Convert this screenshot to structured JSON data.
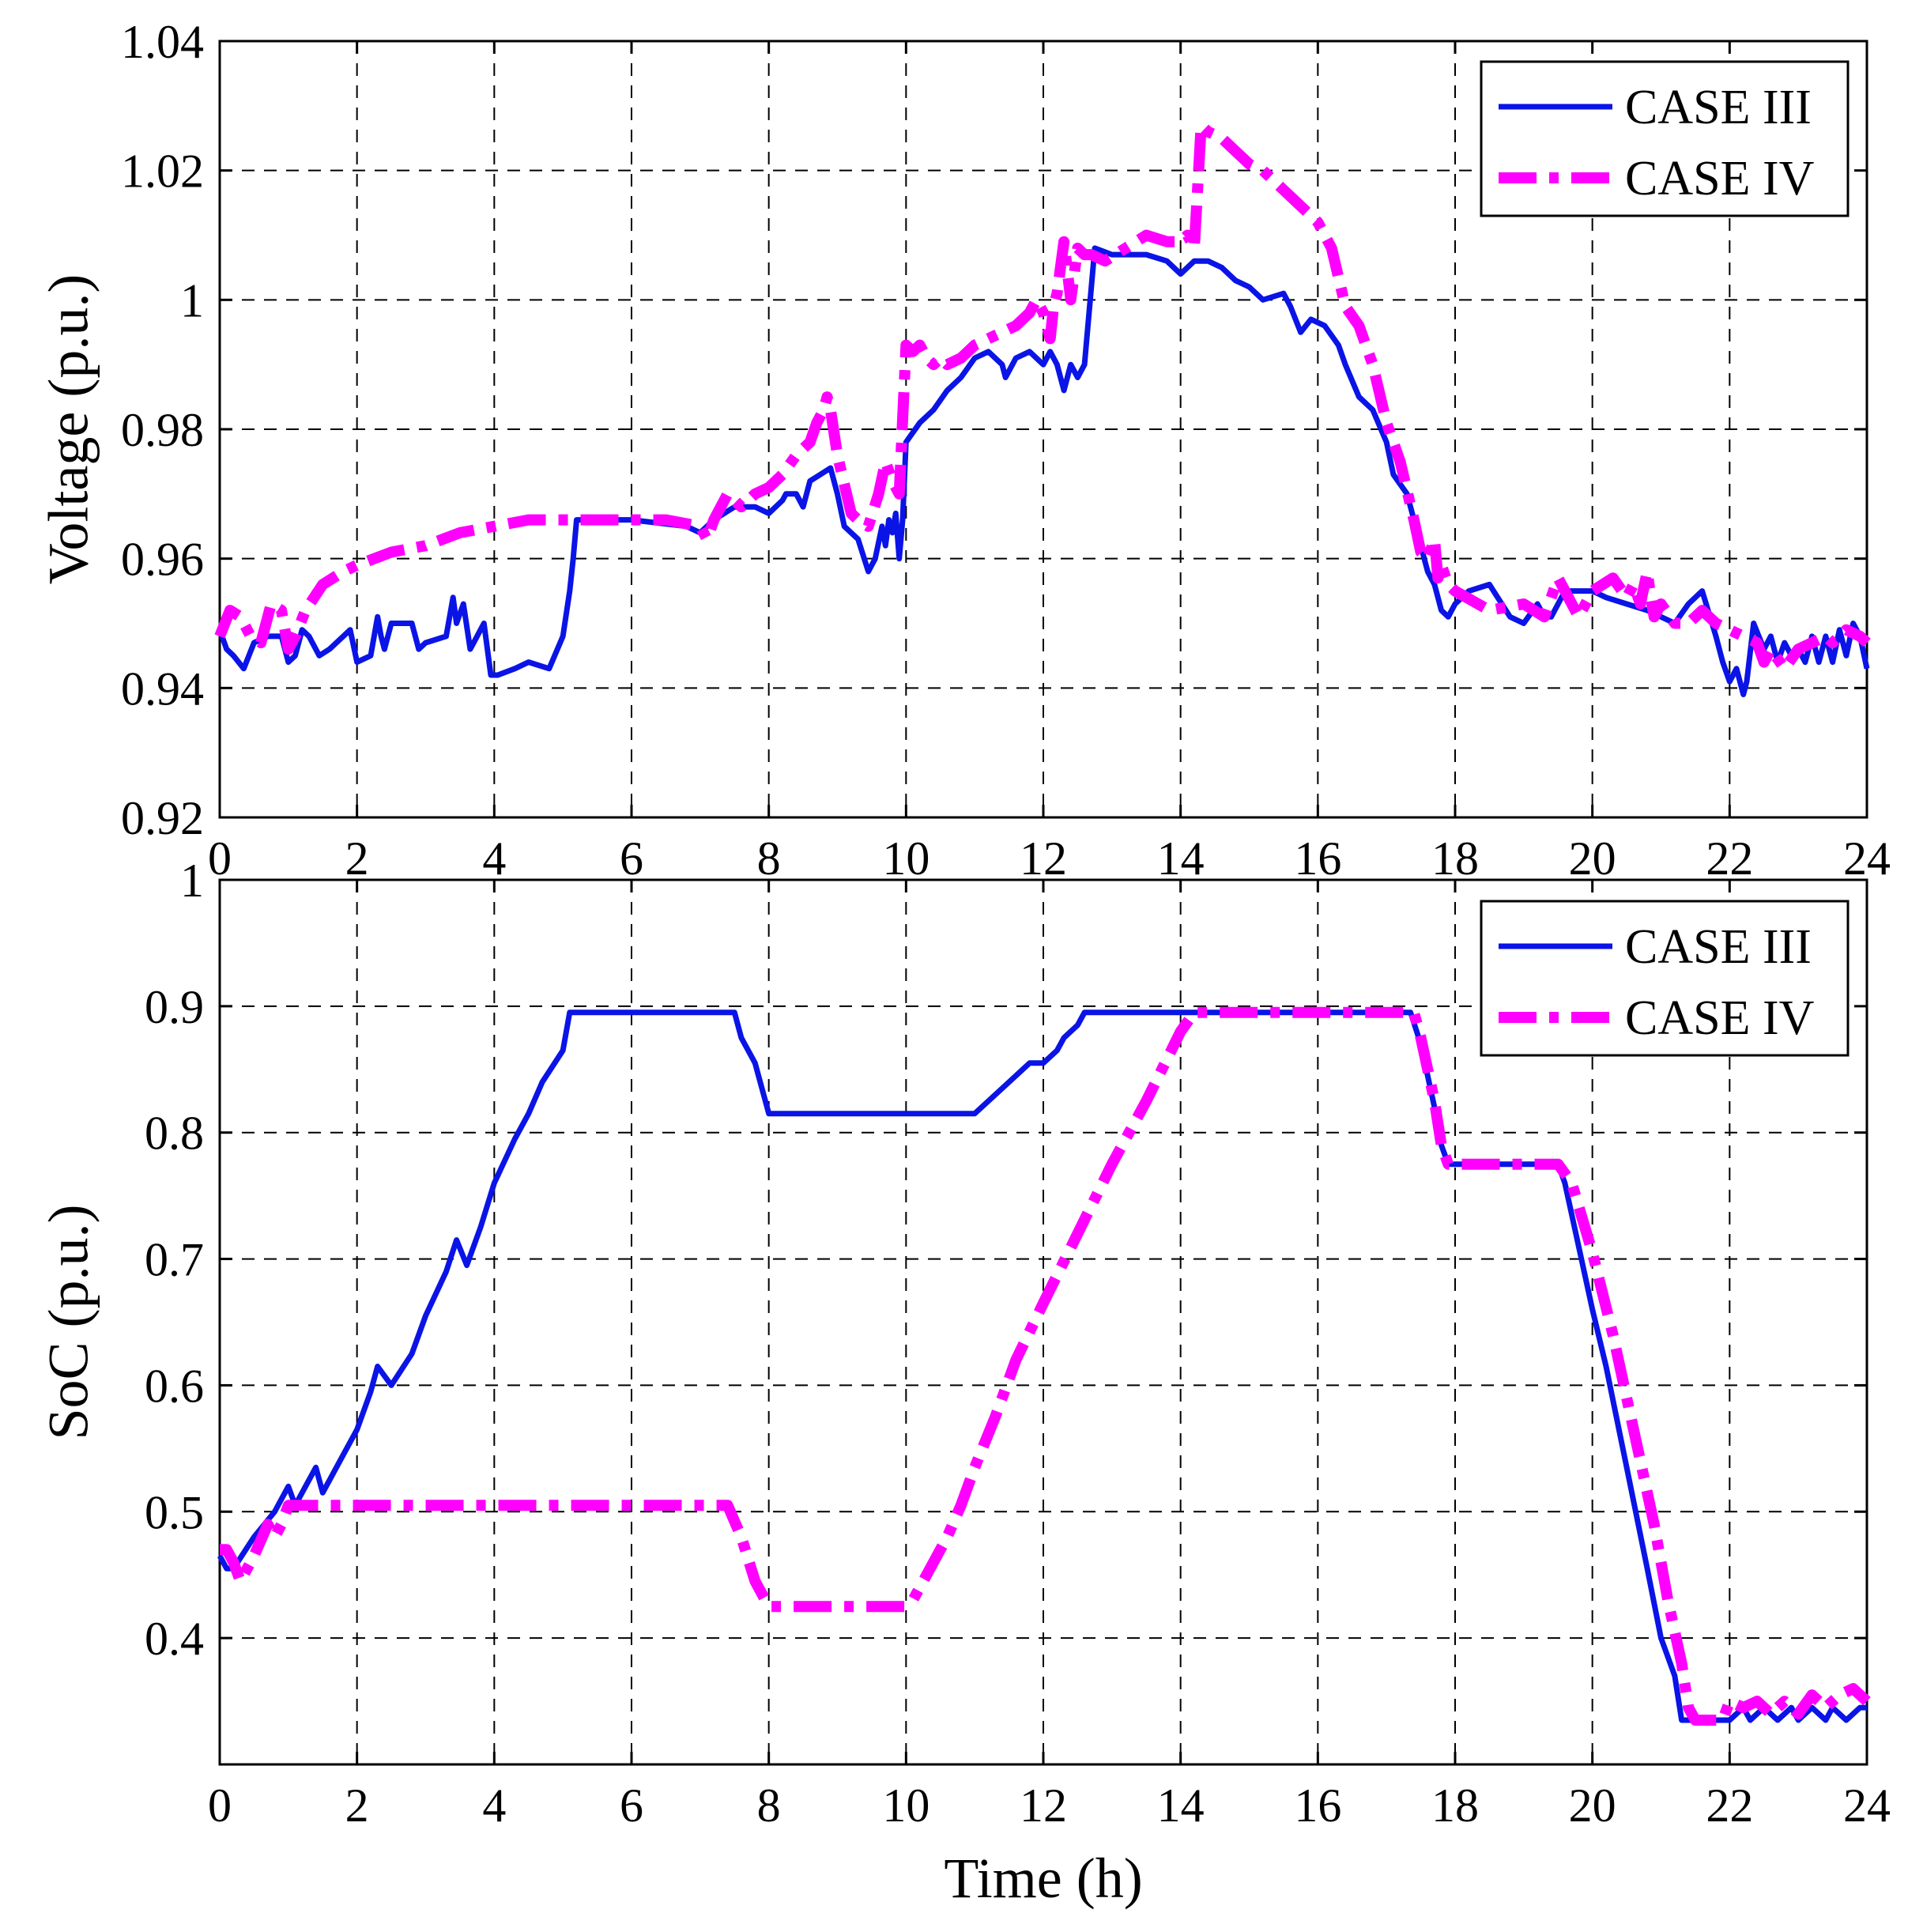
{
  "chart_data": [
    {
      "type": "line",
      "ylabel": "Voltage (p.u.)",
      "xlabel": "",
      "xlim": [
        0,
        24
      ],
      "ylim": [
        0.92,
        1.04
      ],
      "xticks": [
        "0",
        "2",
        "4",
        "6",
        "8",
        "10",
        "12",
        "14",
        "16",
        "18",
        "20",
        "22",
        "24"
      ],
      "yticks": [
        "0.92",
        "0.94",
        "0.96",
        "0.98",
        "1",
        "1.02",
        "1.04"
      ],
      "grid": true,
      "legend_position": "top-right",
      "colors": {
        "CASE III": "#0a14e6",
        "CASE IV": "#ff00ff"
      },
      "series": [
        {
          "name": "CASE III",
          "style": "solid",
          "x": [
            0,
            0.1,
            0.2,
            0.35,
            0.5,
            0.7,
            0.9,
            1.0,
            1.1,
            1.2,
            1.3,
            1.45,
            1.6,
            1.8,
            1.9,
            2.0,
            2.2,
            2.3,
            2.35,
            2.4,
            2.5,
            2.8,
            2.9,
            3.0,
            3.3,
            3.4,
            3.45,
            3.55,
            3.65,
            3.7,
            3.85,
            3.95,
            4.05,
            4.3,
            4.5,
            4.8,
            5.0,
            5.1,
            5.15,
            5.2,
            6.0,
            6.8,
            7.0,
            7.2,
            7.5,
            7.8,
            8.0,
            8.2,
            8.25,
            8.4,
            8.5,
            8.6,
            8.75,
            8.9,
            9.0,
            9.1,
            9.3,
            9.45,
            9.55,
            9.65,
            9.7,
            9.75,
            9.8,
            9.85,
            9.9,
            9.95,
            10.0,
            10.2,
            10.4,
            10.6,
            10.8,
            11.0,
            11.2,
            11.4,
            11.45,
            11.6,
            11.8,
            12.0,
            12.1,
            12.2,
            12.3,
            12.4,
            12.5,
            12.6,
            12.75,
            13.0,
            13.2,
            13.5,
            13.8,
            14.0,
            14.2,
            14.4,
            14.6,
            14.8,
            15.0,
            15.2,
            15.5,
            15.6,
            15.75,
            15.9,
            16.1,
            16.3,
            16.4,
            16.6,
            16.8,
            17.0,
            17.1,
            17.3,
            17.5,
            17.6,
            17.7,
            17.8,
            17.9,
            18.0,
            18.2,
            18.5,
            18.8,
            19.0,
            19.2,
            19.3,
            19.4,
            19.5,
            19.6,
            19.8,
            20.0,
            20.2,
            20.5,
            20.8,
            21.0,
            21.2,
            21.4,
            21.6,
            21.8,
            21.9,
            22.0,
            22.1,
            22.2,
            22.25,
            22.35,
            22.5,
            22.6,
            22.7,
            22.8,
            22.9,
            23.0,
            23.1,
            23.2,
            23.3,
            23.4,
            23.5,
            23.6,
            23.7,
            23.8,
            23.9,
            24.0
          ],
          "values": [
            0.949,
            0.946,
            0.945,
            0.943,
            0.947,
            0.948,
            0.948,
            0.944,
            0.945,
            0.949,
            0.948,
            0.945,
            0.946,
            0.948,
            0.949,
            0.944,
            0.945,
            0.951,
            0.948,
            0.946,
            0.95,
            0.95,
            0.946,
            0.947,
            0.948,
            0.954,
            0.95,
            0.953,
            0.946,
            0.947,
            0.95,
            0.942,
            0.942,
            0.943,
            0.944,
            0.943,
            0.948,
            0.955,
            0.96,
            0.966,
            0.966,
            0.965,
            0.964,
            0.966,
            0.968,
            0.968,
            0.967,
            0.969,
            0.97,
            0.97,
            0.968,
            0.972,
            0.973,
            0.974,
            0.97,
            0.965,
            0.963,
            0.958,
            0.96,
            0.965,
            0.962,
            0.966,
            0.964,
            0.967,
            0.96,
            0.966,
            0.978,
            0.981,
            0.983,
            0.986,
            0.988,
            0.991,
            0.992,
            0.99,
            0.988,
            0.991,
            0.992,
            0.99,
            0.992,
            0.99,
            0.986,
            0.99,
            0.988,
            0.99,
            1.008,
            1.007,
            1.007,
            1.007,
            1.006,
            1.004,
            1.006,
            1.006,
            1.005,
            1.003,
            1.002,
            1.0,
            1.001,
            0.999,
            0.995,
            0.997,
            0.996,
            0.993,
            0.99,
            0.985,
            0.983,
            0.978,
            0.973,
            0.97,
            0.962,
            0.958,
            0.956,
            0.952,
            0.951,
            0.953,
            0.955,
            0.956,
            0.951,
            0.95,
            0.953,
            0.951,
            0.951,
            0.953,
            0.955,
            0.955,
            0.955,
            0.954,
            0.953,
            0.952,
            0.951,
            0.95,
            0.953,
            0.955,
            0.948,
            0.944,
            0.941,
            0.943,
            0.939,
            0.941,
            0.95,
            0.946,
            0.948,
            0.944,
            0.947,
            0.945,
            0.946,
            0.944,
            0.948,
            0.944,
            0.948,
            0.944,
            0.949,
            0.945,
            0.95,
            0.948,
            0.943
          ]
        },
        {
          "name": "CASE IV",
          "style": "dash-dot",
          "x": [
            0,
            0.15,
            0.3,
            0.45,
            0.6,
            0.75,
            0.9,
            1.0,
            1.1,
            1.25,
            1.5,
            1.8,
            2.0,
            2.5,
            3.0,
            3.5,
            4.0,
            4.5,
            5.0,
            5.5,
            6.0,
            6.5,
            7.0,
            7.1,
            7.2,
            7.4,
            7.6,
            7.8,
            8.0,
            8.2,
            8.4,
            8.6,
            8.7,
            8.8,
            8.85,
            8.9,
            9.0,
            9.2,
            9.3,
            9.45,
            9.6,
            9.7,
            9.8,
            9.9,
            10.0,
            10.1,
            10.2,
            10.3,
            10.4,
            10.5,
            10.6,
            10.8,
            11.0,
            11.2,
            11.4,
            11.6,
            11.8,
            11.9,
            12.0,
            12.1,
            12.15,
            12.2,
            12.3,
            12.4,
            12.5,
            12.6,
            12.7,
            12.9,
            13.2,
            13.5,
            13.8,
            14.0,
            14.1,
            14.2,
            14.3,
            14.4,
            14.6,
            14.8,
            15.0,
            15.2,
            15.5,
            15.8,
            16.0,
            16.2,
            16.4,
            16.6,
            16.8,
            17.0,
            17.2,
            17.4,
            17.5,
            17.6,
            17.7,
            17.75,
            17.8,
            17.9,
            18.0,
            18.5,
            19.0,
            19.3,
            19.5,
            19.8,
            20.0,
            20.3,
            20.5,
            20.6,
            20.7,
            20.8,
            20.85,
            20.9,
            21.0,
            21.2,
            21.4,
            21.6,
            21.8,
            22.0,
            22.2,
            22.4,
            22.5,
            22.6,
            22.8,
            23.0,
            23.2,
            23.4,
            23.5,
            23.7,
            23.9,
            24.0
          ],
          "values": [
            0.948,
            0.952,
            0.951,
            0.948,
            0.947,
            0.953,
            0.952,
            0.946,
            0.948,
            0.952,
            0.956,
            0.958,
            0.959,
            0.961,
            0.962,
            0.964,
            0.965,
            0.966,
            0.966,
            0.966,
            0.966,
            0.966,
            0.965,
            0.963,
            0.966,
            0.97,
            0.968,
            0.97,
            0.971,
            0.973,
            0.976,
            0.978,
            0.981,
            0.983,
            0.985,
            0.983,
            0.976,
            0.967,
            0.966,
            0.965,
            0.97,
            0.975,
            0.972,
            0.97,
            0.993,
            0.992,
            0.993,
            0.991,
            0.99,
            0.991,
            0.99,
            0.991,
            0.993,
            0.994,
            0.995,
            0.996,
            0.998,
            1.0,
            0.998,
            0.994,
            0.999,
            1.001,
            1.009,
            1.0,
            1.008,
            1.007,
            1.007,
            1.006,
            1.008,
            1.01,
            1.009,
            1.009,
            1.01,
            1.008,
            1.027,
            1.026,
            1.025,
            1.023,
            1.021,
            1.02,
            1.017,
            1.014,
            1.012,
            1.008,
            0.999,
            0.996,
            0.99,
            0.981,
            0.975,
            0.966,
            0.961,
            0.96,
            0.963,
            0.957,
            0.959,
            0.956,
            0.955,
            0.952,
            0.953,
            0.951,
            0.957,
            0.951,
            0.955,
            0.957,
            0.954,
            0.956,
            0.953,
            0.958,
            0.954,
            0.951,
            0.953,
            0.95,
            0.95,
            0.952,
            0.95,
            0.949,
            0.948,
            0.947,
            0.944,
            0.946,
            0.943,
            0.946,
            0.947,
            0.948,
            0.947,
            0.949,
            0.948,
            0.947
          ]
        }
      ]
    },
    {
      "type": "line",
      "ylabel": "SoC (p.u.)",
      "xlabel": "Time (h)",
      "xlim": [
        0,
        24
      ],
      "ylim": [
        0.3,
        1.0
      ],
      "xticks": [
        "0",
        "2",
        "4",
        "6",
        "8",
        "10",
        "12",
        "14",
        "16",
        "18",
        "20",
        "22",
        "24"
      ],
      "yticks": [
        "0.4",
        "0.5",
        "0.6",
        "0.7",
        "0.8",
        "0.9",
        "1"
      ],
      "grid": true,
      "legend_position": "top-right",
      "colors": {
        "CASE III": "#0a14e6",
        "CASE IV": "#ff00ff"
      },
      "series": [
        {
          "name": "CASE III",
          "style": "solid",
          "x": [
            0,
            0.1,
            0.2,
            0.5,
            0.8,
            1.0,
            1.1,
            1.3,
            1.4,
            1.5,
            1.8,
            2.0,
            2.2,
            2.3,
            2.5,
            2.8,
            3.0,
            3.3,
            3.45,
            3.6,
            3.8,
            4.0,
            4.3,
            4.5,
            4.7,
            5.0,
            5.1,
            6.0,
            7.0,
            7.5,
            7.6,
            7.8,
            7.9,
            8.0,
            9.0,
            10.0,
            11.0,
            11.2,
            11.4,
            11.6,
            11.8,
            12.0,
            12.2,
            12.3,
            12.5,
            12.6,
            13.0,
            14.0,
            15.0,
            16.0,
            17.0,
            17.35,
            17.5,
            17.7,
            17.8,
            17.9,
            18.0,
            19.0,
            19.5,
            19.6,
            19.8,
            20.0,
            20.2,
            20.5,
            20.8,
            21.0,
            21.2,
            21.3,
            21.5,
            21.8,
            22.0,
            22.2,
            22.3,
            22.5,
            22.7,
            22.9,
            23.0,
            23.2,
            23.4,
            23.5,
            23.7,
            23.9,
            24.0
          ],
          "values": [
            0.465,
            0.455,
            0.455,
            0.48,
            0.5,
            0.52,
            0.505,
            0.525,
            0.535,
            0.515,
            0.545,
            0.565,
            0.595,
            0.615,
            0.6,
            0.625,
            0.655,
            0.69,
            0.715,
            0.695,
            0.725,
            0.76,
            0.795,
            0.815,
            0.84,
            0.865,
            0.895,
            0.895,
            0.895,
            0.895,
            0.875,
            0.855,
            0.835,
            0.815,
            0.815,
            0.815,
            0.815,
            0.825,
            0.835,
            0.845,
            0.855,
            0.855,
            0.865,
            0.875,
            0.885,
            0.895,
            0.895,
            0.895,
            0.895,
            0.895,
            0.895,
            0.895,
            0.87,
            0.82,
            0.79,
            0.775,
            0.775,
            0.775,
            0.775,
            0.76,
            0.71,
            0.66,
            0.615,
            0.535,
            0.455,
            0.4,
            0.37,
            0.335,
            0.335,
            0.335,
            0.335,
            0.345,
            0.335,
            0.345,
            0.335,
            0.345,
            0.335,
            0.345,
            0.335,
            0.345,
            0.335,
            0.345,
            0.345
          ]
        },
        {
          "name": "CASE IV",
          "style": "dash-dot",
          "x": [
            0,
            0.1,
            0.2,
            0.3,
            0.5,
            0.7,
            0.8,
            0.9,
            1.0,
            1.1,
            2.0,
            3.0,
            4.0,
            5.0,
            6.0,
            7.0,
            7.4,
            7.6,
            7.8,
            8.0,
            8.5,
            9.0,
            9.5,
            10.0,
            10.1,
            10.3,
            10.6,
            10.8,
            11.0,
            11.3,
            11.6,
            12.0,
            12.5,
            13.0,
            13.5,
            14.0,
            14.2,
            14.3,
            14.5,
            15.0,
            16.0,
            17.0,
            17.4,
            17.5,
            17.7,
            17.8,
            17.9,
            18.0,
            19.0,
            19.5,
            19.7,
            20.0,
            20.3,
            20.6,
            20.9,
            21.1,
            21.3,
            21.4,
            21.5,
            21.8,
            21.9,
            22.0,
            22.2,
            22.4,
            22.6,
            22.8,
            23.0,
            23.2,
            23.4,
            23.6,
            23.8,
            24.0
          ],
          "values": [
            0.47,
            0.47,
            0.46,
            0.445,
            0.465,
            0.49,
            0.48,
            0.49,
            0.505,
            0.505,
            0.505,
            0.505,
            0.505,
            0.505,
            0.505,
            0.505,
            0.505,
            0.48,
            0.445,
            0.425,
            0.425,
            0.425,
            0.425,
            0.425,
            0.43,
            0.45,
            0.48,
            0.505,
            0.535,
            0.575,
            0.62,
            0.665,
            0.72,
            0.775,
            0.825,
            0.88,
            0.895,
            0.895,
            0.895,
            0.895,
            0.895,
            0.895,
            0.895,
            0.875,
            0.825,
            0.79,
            0.775,
            0.775,
            0.775,
            0.775,
            0.76,
            0.705,
            0.64,
            0.565,
            0.49,
            0.43,
            0.38,
            0.345,
            0.335,
            0.335,
            0.335,
            0.35,
            0.345,
            0.35,
            0.34,
            0.35,
            0.34,
            0.355,
            0.345,
            0.355,
            0.36,
            0.35
          ]
        }
      ]
    }
  ]
}
